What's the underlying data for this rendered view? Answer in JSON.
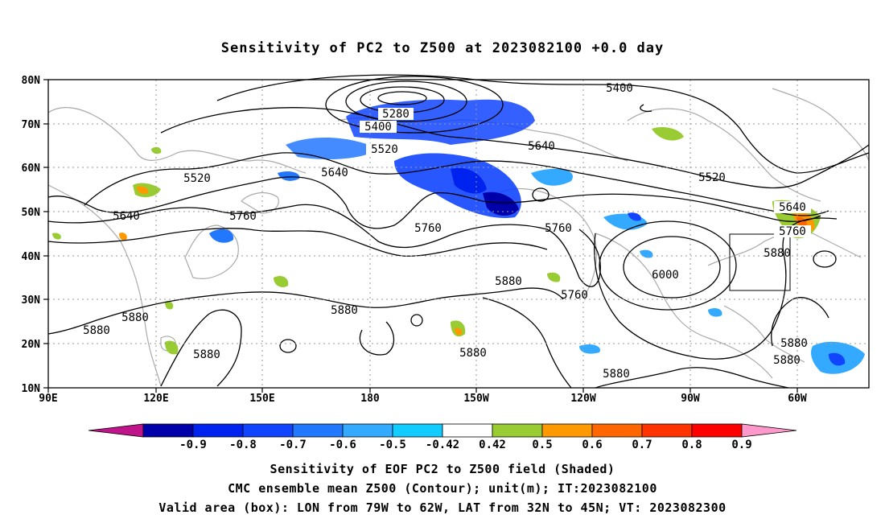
{
  "title": "Sensitivity of PC2 to Z500 at 2023082100 +0.0 day",
  "map": {
    "lat_labels": [
      "80N",
      "70N",
      "60N",
      "50N",
      "40N",
      "30N",
      "20N",
      "10N"
    ],
    "lon_labels": [
      "90E",
      "120E",
      "150E",
      "180",
      "150W",
      "120W",
      "90W",
      "60W"
    ],
    "contour_labels": [
      {
        "text": "5280"
      },
      {
        "text": "5400"
      },
      {
        "text": "5400"
      },
      {
        "text": "5520"
      },
      {
        "text": "5520"
      },
      {
        "text": "5520"
      },
      {
        "text": "5640"
      },
      {
        "text": "5640"
      },
      {
        "text": "5640"
      },
      {
        "text": "5640"
      },
      {
        "text": "5760"
      },
      {
        "text": "5760"
      },
      {
        "text": "5760"
      },
      {
        "text": "5760"
      },
      {
        "text": "5760"
      },
      {
        "text": "5880"
      },
      {
        "text": "5880"
      },
      {
        "text": "5880"
      },
      {
        "text": "5880"
      },
      {
        "text": "5880"
      },
      {
        "text": "5880"
      },
      {
        "text": "5880"
      },
      {
        "text": "5880"
      },
      {
        "text": "5880"
      },
      {
        "text": "6000"
      }
    ],
    "valid_area_box": {
      "lon_from": "79W",
      "lon_to": "62W",
      "lat_from": "32N",
      "lat_to": "45N"
    }
  },
  "colorbar": {
    "labels": [
      "-0.9",
      "-0.8",
      "-0.7",
      "-0.6",
      "-0.5",
      "-0.42",
      "0.42",
      "0.5",
      "0.6",
      "0.7",
      "0.8",
      "0.9"
    ],
    "colors": [
      "#c0158a",
      "#0000aa",
      "#0022ee",
      "#1144ff",
      "#2277ff",
      "#33aaff",
      "#11ccff",
      "#ffffff",
      "#99cc33",
      "#ff9900",
      "#ff6600",
      "#ff3300",
      "#ff0000",
      "#ff99cc"
    ]
  },
  "captions": [
    "Sensitivity of EOF PC2 to Z500 field (Shaded)",
    "CMC ensemble mean Z500 (Contour); unit(m); IT:2023082100",
    "Valid area (box): LON from 79W to 62W, LAT from 32N to 45N; VT: 2023082300"
  ]
}
